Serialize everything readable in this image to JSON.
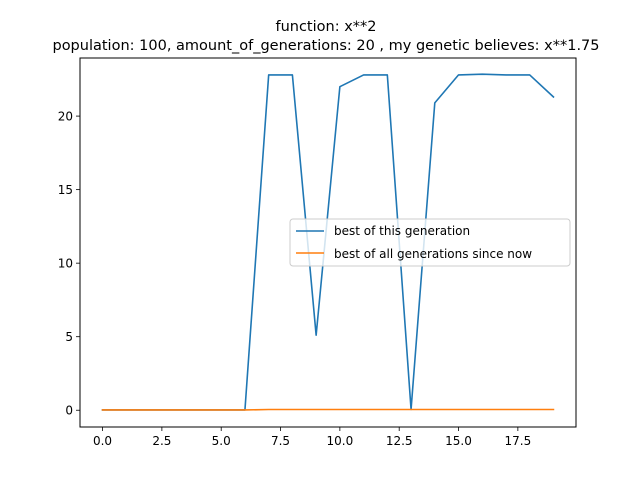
{
  "chart_data": {
    "type": "line",
    "title": "function:  x**2",
    "subtitle": "population: 100, amount_of_generations: 20 , my genetic believes: x**1.75",
    "xlabel": "",
    "ylabel": "",
    "xlim": [
      -0.95,
      19.95
    ],
    "ylim": [
      -1.14,
      23.95
    ],
    "xticks": [
      0.0,
      2.5,
      5.0,
      7.5,
      10.0,
      12.5,
      15.0,
      17.5
    ],
    "xtick_labels": [
      "0.0",
      "2.5",
      "5.0",
      "7.5",
      "10.0",
      "12.5",
      "15.0",
      "17.5"
    ],
    "yticks": [
      0,
      5,
      10,
      15,
      20
    ],
    "ytick_labels": [
      "0",
      "5",
      "10",
      "15",
      "20"
    ],
    "grid": false,
    "legend_position": "center-right",
    "x": [
      0,
      1,
      2,
      3,
      4,
      5,
      6,
      7,
      8,
      9,
      10,
      11,
      12,
      13,
      14,
      15,
      16,
      17,
      18,
      19
    ],
    "series": [
      {
        "name": "best of this generation",
        "color": "#1f77b4",
        "values": [
          0.02,
          0.02,
          0.02,
          0.02,
          0.02,
          0.02,
          0.02,
          22.8,
          22.8,
          5.1,
          22.0,
          22.8,
          22.8,
          0.05,
          20.9,
          22.8,
          22.85,
          22.8,
          22.8,
          21.3
        ]
      },
      {
        "name": "best of all generations since now",
        "color": "#ff7f0e",
        "values": [
          0.02,
          0.02,
          0.02,
          0.02,
          0.02,
          0.02,
          0.02,
          0.05,
          0.05,
          0.05,
          0.05,
          0.05,
          0.05,
          0.05,
          0.05,
          0.05,
          0.05,
          0.05,
          0.05,
          0.05
        ]
      }
    ]
  }
}
